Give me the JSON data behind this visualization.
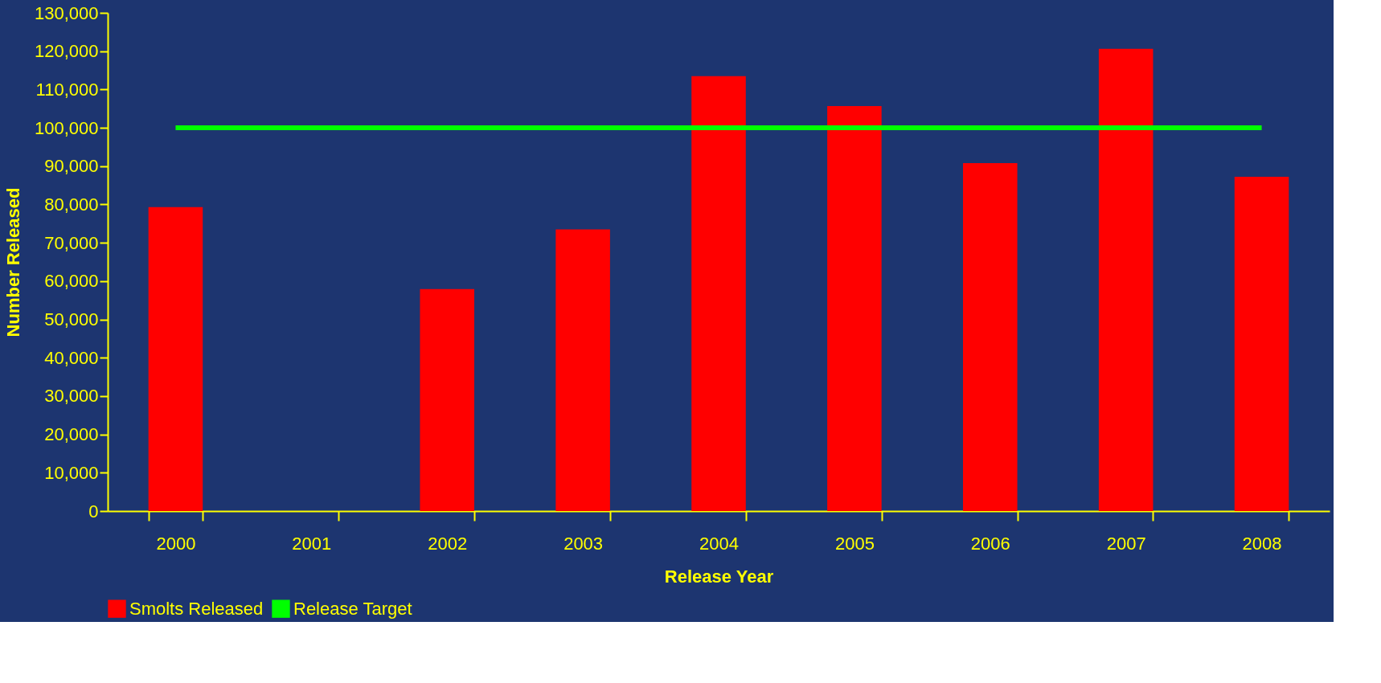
{
  "chart_data": {
    "type": "bar",
    "xlabel": "Release Year",
    "ylabel": "Number Released",
    "categories": [
      "2000",
      "2001",
      "2002",
      "2003",
      "2004",
      "2005",
      "2006",
      "2007",
      "2008"
    ],
    "series": [
      {
        "name": "Smolts Released",
        "color": "#ff0000",
        "values": [
          79300,
          null,
          57900,
          73500,
          113500,
          105700,
          90800,
          120600,
          87200
        ]
      },
      {
        "name": "Release Target",
        "type": "line",
        "color": "#00ff00",
        "values": [
          100000,
          100000,
          100000,
          100000,
          100000,
          100000,
          100000,
          100000,
          100000
        ]
      }
    ],
    "ylim": [
      0,
      130000
    ],
    "yticks": [
      0,
      {
        "value": 10000,
        "label": "10,000"
      },
      {
        "value": 20000,
        "label": "20,000"
      },
      {
        "value": 30000,
        "label": "30,000"
      },
      {
        "value": 40000,
        "label": "40,000"
      },
      {
        "value": 50000,
        "label": "50,000"
      },
      {
        "value": 60000,
        "label": "60,000"
      },
      {
        "value": 70000,
        "label": "70,000"
      },
      {
        "value": 80000,
        "label": "80,000"
      },
      {
        "value": 90000,
        "label": "90,000"
      },
      {
        "value": 100000,
        "label": "100,000"
      },
      {
        "value": 110000,
        "label": "110,000"
      },
      {
        "value": 120000,
        "label": "120,000"
      },
      {
        "value": 130000,
        "label": "130,000"
      }
    ],
    "grid": false,
    "legend": "bottom"
  }
}
